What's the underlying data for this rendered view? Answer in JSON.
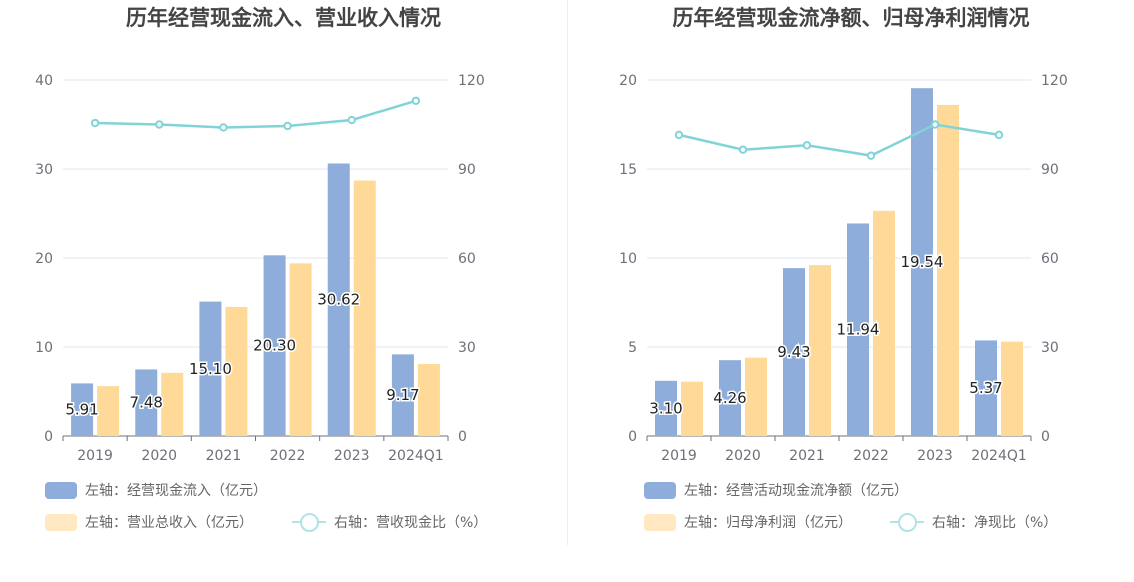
{
  "colors": {
    "bar_primary": "#8eaddb",
    "bar_secondary": "#ffd998",
    "line": "#80d4d8",
    "legend_primary": "#8eaddb",
    "legend_secondary": "#ffe8c2",
    "legend_line": "#b0e3e8"
  },
  "chart_data": [
    {
      "type": "bar",
      "title": "历年经营现金流入、营业收入情况",
      "categories": [
        "2019",
        "2020",
        "2021",
        "2022",
        "2023",
        "2024Q1"
      ],
      "left_axis": {
        "ticks": [
          "0",
          "10",
          "20",
          "30",
          "40"
        ],
        "ylim": [
          0,
          40
        ]
      },
      "right_axis": {
        "ticks": [
          "0",
          "30",
          "60",
          "90",
          "120"
        ],
        "ylim": [
          0,
          120
        ]
      },
      "grid": true,
      "legend_position": "bottom",
      "series": [
        {
          "name": "左轴：经营现金流入（亿元）",
          "type": "bar",
          "axis": "left",
          "values": [
            5.91,
            7.48,
            15.1,
            20.3,
            30.62,
            9.17
          ],
          "labels": [
            "5.91",
            "7.48",
            "15.10",
            "20.30",
            "30.62",
            "9.17"
          ]
        },
        {
          "name": "左轴：营业总收入（亿元）",
          "type": "bar",
          "axis": "left",
          "values": [
            5.6,
            7.1,
            14.5,
            19.4,
            28.7,
            8.1
          ]
        },
        {
          "name": "右轴：营收现金比（%）",
          "type": "line",
          "axis": "right",
          "values": [
            105.5,
            105.0,
            104.0,
            104.5,
            106.5,
            113.0
          ]
        }
      ]
    },
    {
      "type": "bar",
      "title": "历年经营现金流净额、归母净利润情况",
      "categories": [
        "2019",
        "2020",
        "2021",
        "2022",
        "2023",
        "2024Q1"
      ],
      "left_axis": {
        "ticks": [
          "0",
          "5",
          "10",
          "15",
          "20"
        ],
        "ylim": [
          0,
          20
        ]
      },
      "right_axis": {
        "ticks": [
          "0",
          "30",
          "60",
          "90",
          "120"
        ],
        "ylim": [
          0,
          120
        ]
      },
      "grid": true,
      "legend_position": "bottom",
      "series": [
        {
          "name": "左轴：经营活动现金流净额（亿元）",
          "type": "bar",
          "axis": "left",
          "values": [
            3.1,
            4.26,
            9.43,
            11.94,
            19.54,
            5.37
          ],
          "labels": [
            "3.10",
            "4.26",
            "9.43",
            "11.94",
            "19.54",
            "5.37"
          ]
        },
        {
          "name": "左轴：归母净利润（亿元）",
          "type": "bar",
          "axis": "left",
          "values": [
            3.05,
            4.4,
            9.6,
            12.65,
            18.6,
            5.3
          ]
        },
        {
          "name": "右轴：净现比（%）",
          "type": "line",
          "axis": "right",
          "values": [
            101.5,
            96.5,
            98.0,
            94.5,
            105.0,
            101.5
          ]
        }
      ]
    }
  ]
}
